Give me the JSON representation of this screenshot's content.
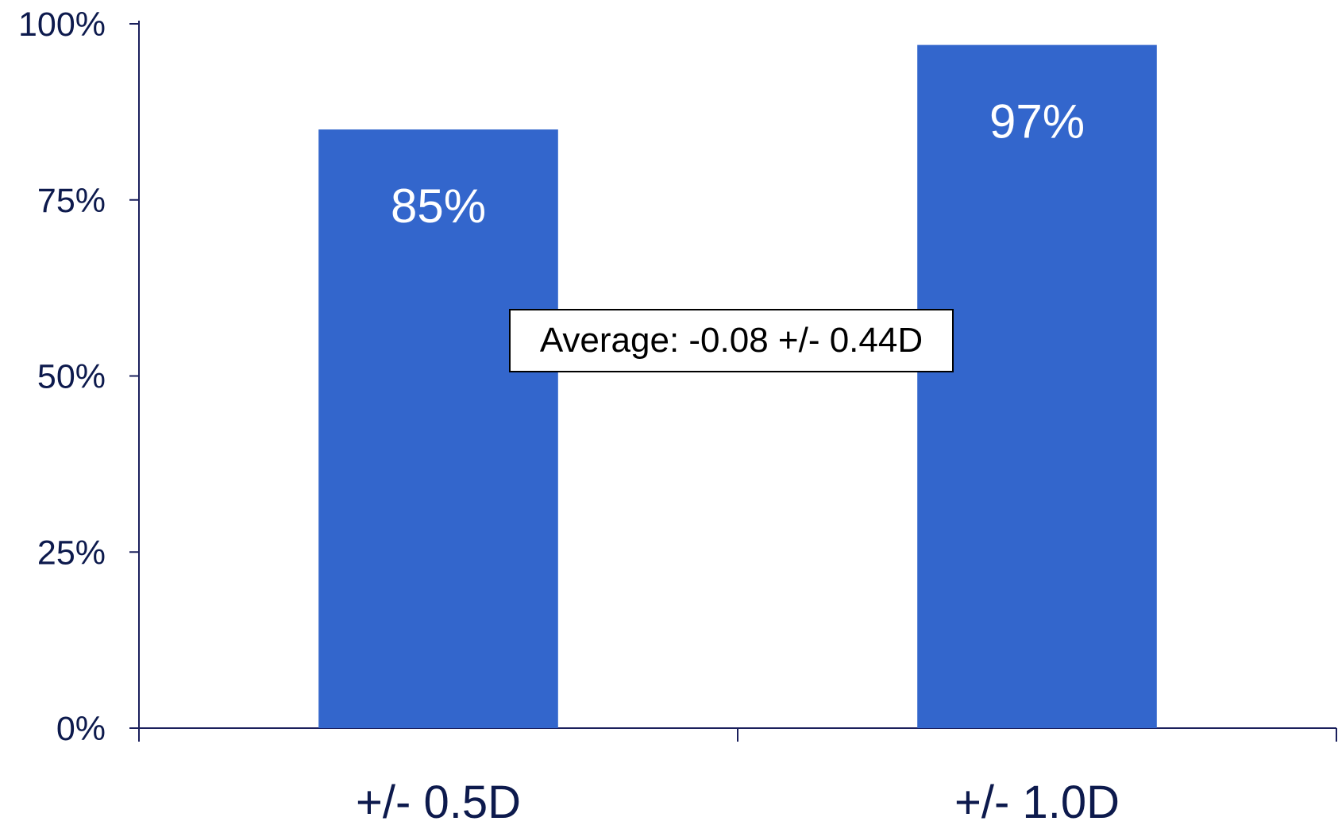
{
  "colors": {
    "bar": "#3366CC",
    "axis": "#1a1f5c",
    "text": "#0d1a4d",
    "label_on_bar": "#ffffff"
  },
  "chart_data": {
    "type": "bar",
    "categories": [
      "+/- 0.5D",
      "+/- 1.0D"
    ],
    "values": [
      85,
      97
    ],
    "value_labels": [
      "85%",
      "97%"
    ],
    "ylim": [
      0,
      100
    ],
    "yticks": [
      0,
      25,
      50,
      75,
      100
    ],
    "ytick_labels": [
      "0%",
      "25%",
      "50%",
      "75%",
      "100%"
    ],
    "annotation": "Average: -0.08 +/- 0.44D",
    "grid": false,
    "legend": "none"
  }
}
